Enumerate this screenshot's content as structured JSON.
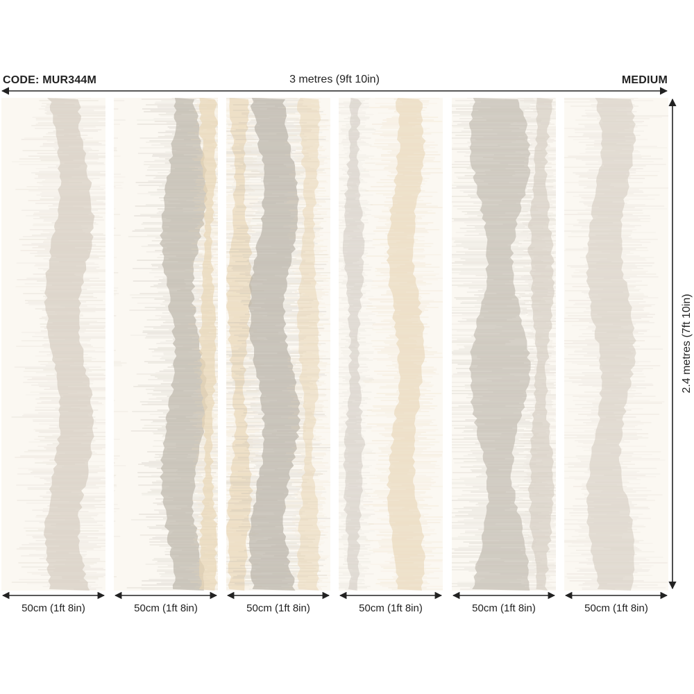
{
  "header": {
    "code": "CODE: MUR344M",
    "width_dimension": "3 metres (9ft 10in)",
    "size": "MEDIUM"
  },
  "height_dimension": "2.4 metres (7ft 10in)",
  "colors": {
    "background": "#ffffff",
    "arrow": "#222222",
    "taupe": "#d2c9be",
    "grey": "#b7b0a6",
    "sand": "#e8d5b5",
    "cream": "#fbf8f2"
  },
  "panels": [
    {
      "label": "50cm (1ft 8in)"
    },
    {
      "label": "50cm (1ft 8in)"
    },
    {
      "label": "50cm (1ft 8in)"
    },
    {
      "label": "50cm (1ft 8in)"
    },
    {
      "label": "50cm (1ft 8in)"
    },
    {
      "label": "50cm (1ft 8in)"
    }
  ]
}
